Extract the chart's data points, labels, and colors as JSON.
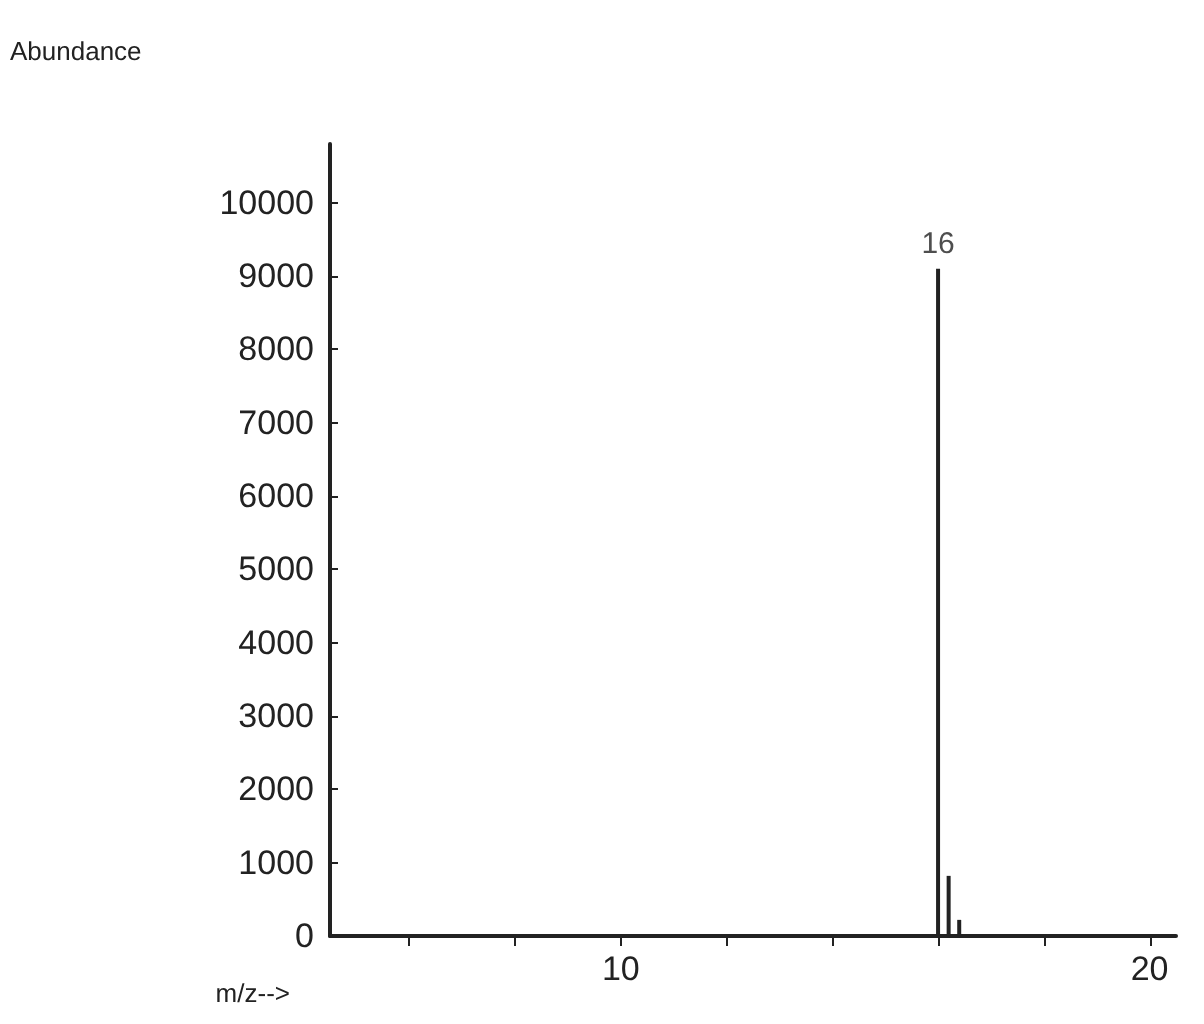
{
  "chart_data": {
    "type": "bar",
    "ylabel": "Abundance",
    "xlabel": "m/z-->",
    "x": [
      16,
      16.2,
      16.4
    ],
    "values": [
      9100,
      820,
      220
    ],
    "color": "#222222",
    "xlim": [
      4.5,
      20.5
    ],
    "xticks": [
      {
        "value": 6,
        "label": null
      },
      {
        "value": 8,
        "label": null
      },
      10,
      {
        "value": 12,
        "label": null
      },
      {
        "value": 14,
        "label": null
      },
      {
        "value": 16,
        "label": null
      },
      {
        "value": 18,
        "label": null
      },
      20
    ],
    "ylim": [
      0,
      10800
    ],
    "yticks": [
      0,
      1000,
      2000,
      3000,
      4000,
      5000,
      6000,
      7000,
      8000,
      9000,
      10000
    ],
    "annotations": [
      {
        "text": "16",
        "x": 16,
        "y": 9100
      }
    ]
  }
}
